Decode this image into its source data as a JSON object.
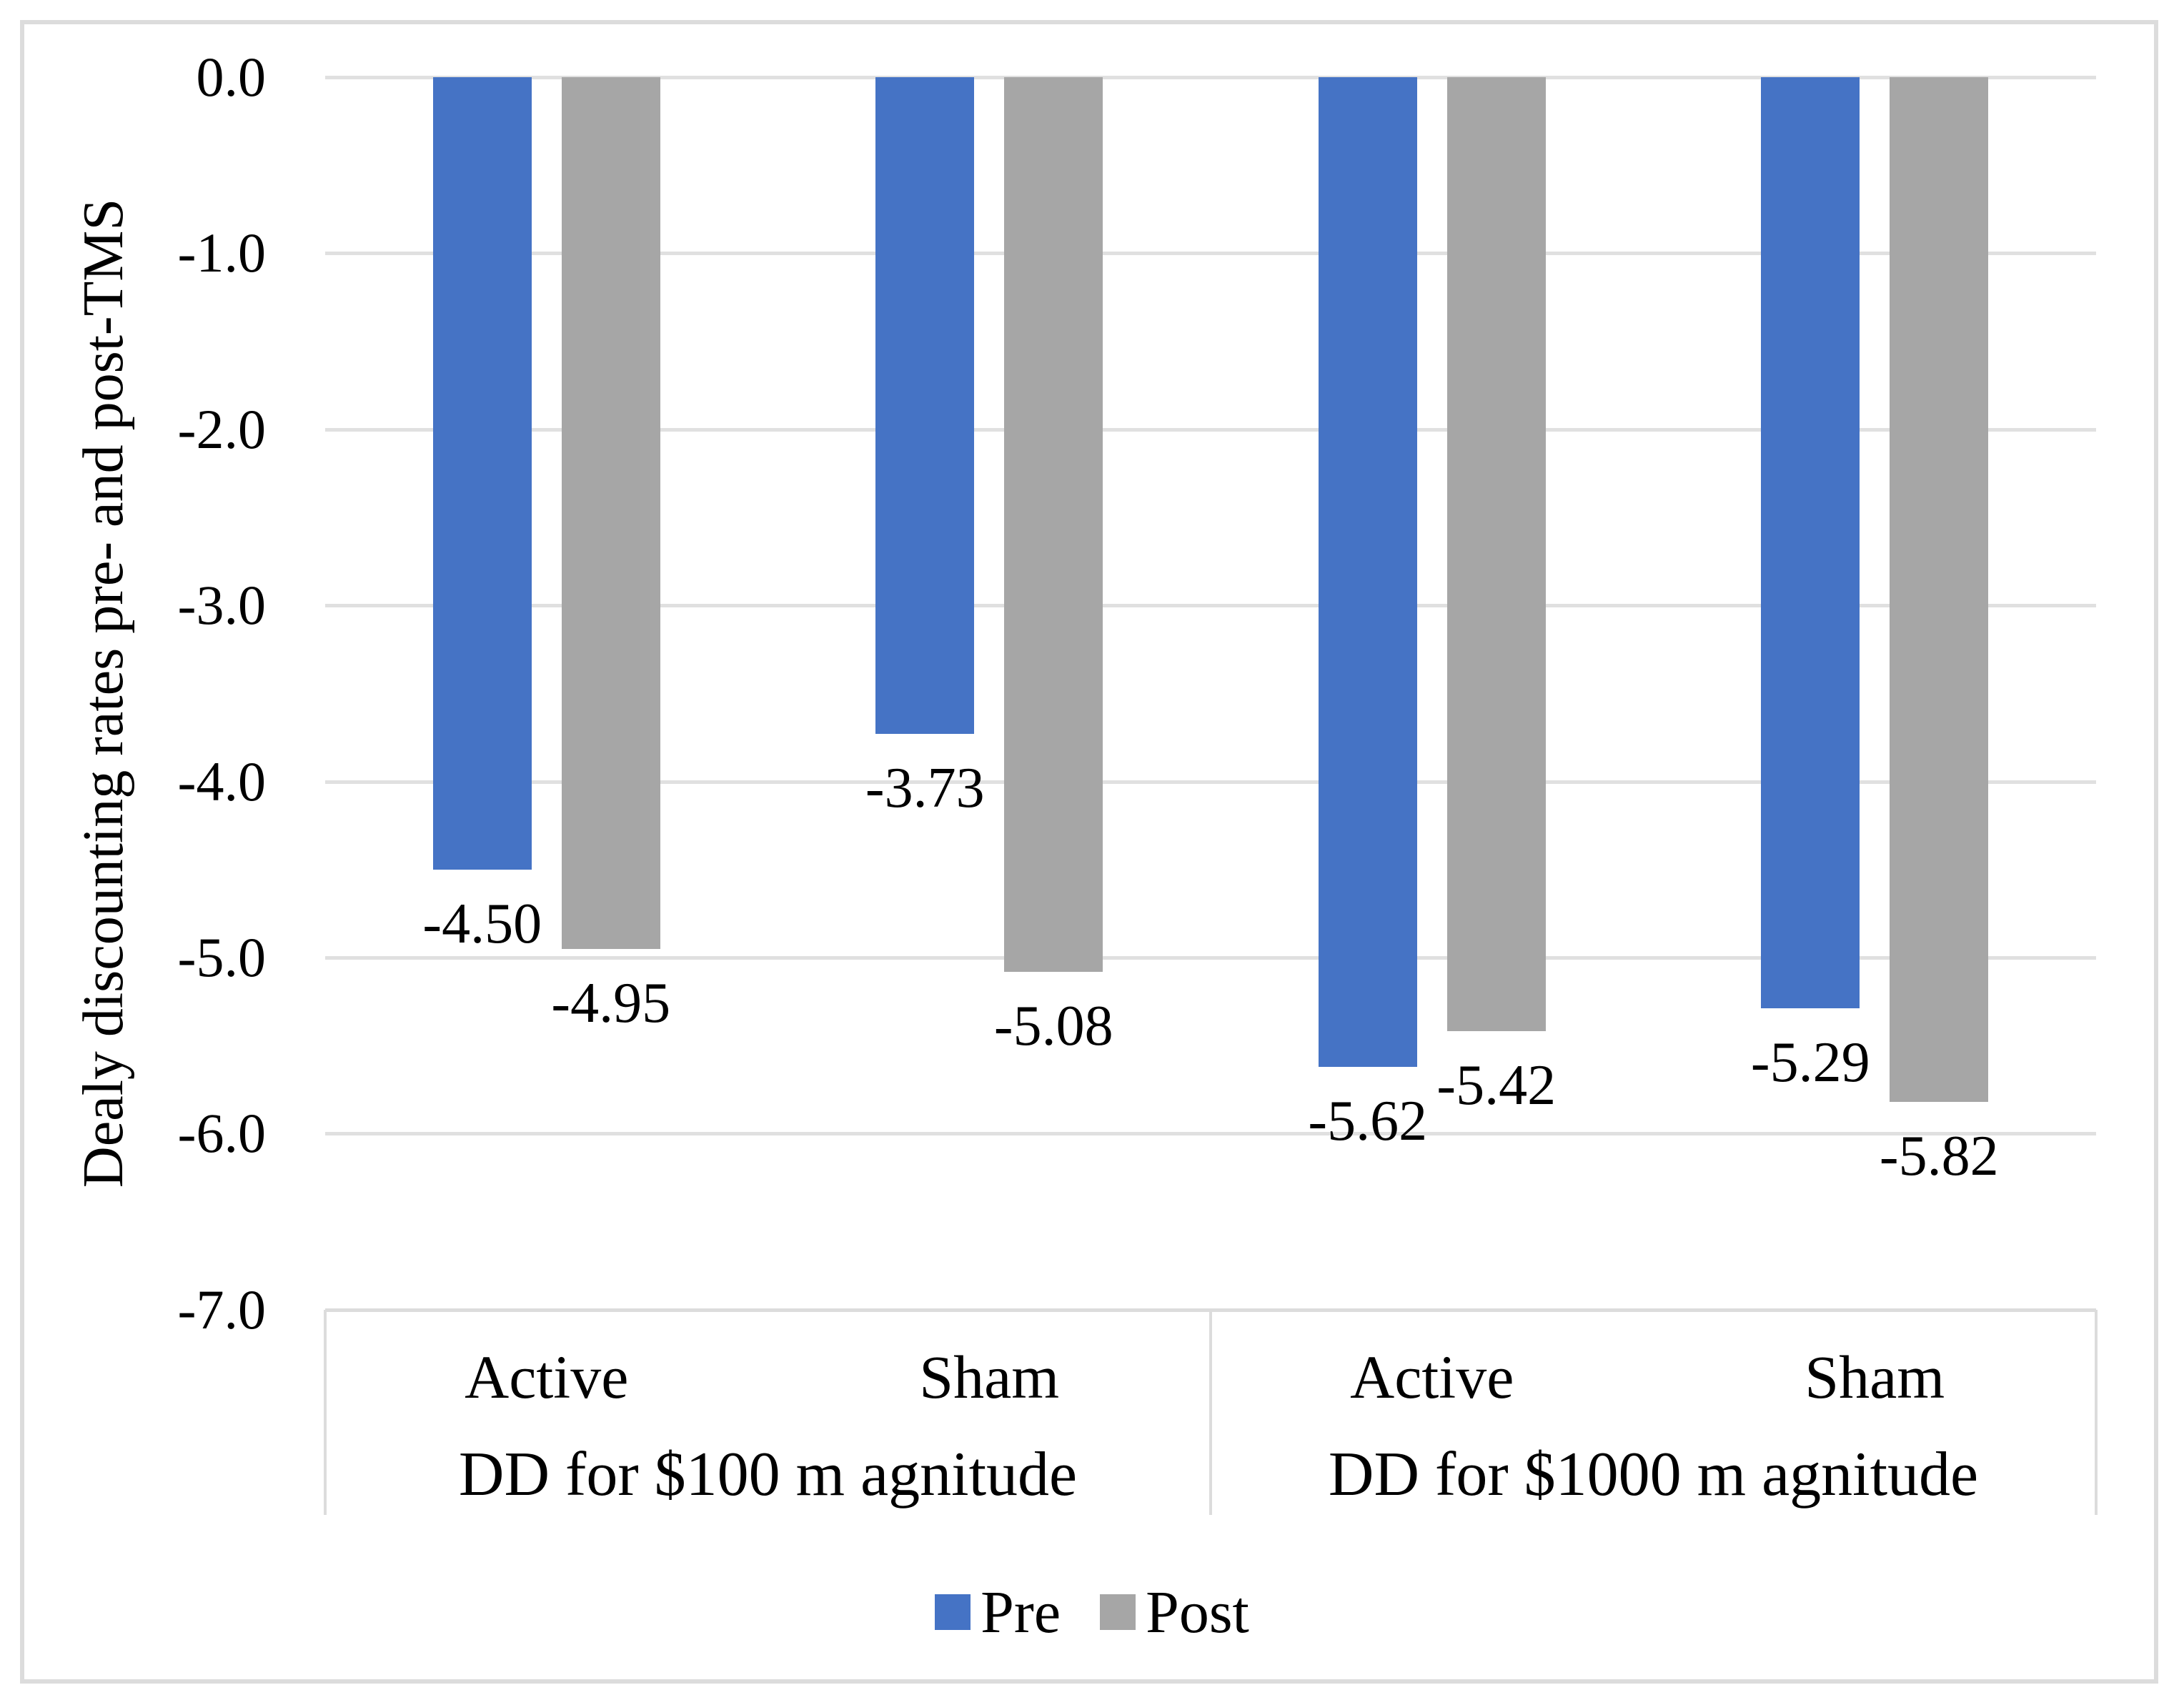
{
  "chart_data": {
    "type": "bar",
    "orientation": "vertical-negative",
    "y_axis": {
      "title": "Dealy  discounting rates pre-  and post-TMS",
      "max": 0.0,
      "min": -7.0,
      "step": 1.0,
      "tick_labels": [
        "0.0",
        "-1.0",
        "-2.0",
        "-3.0",
        "-4.0",
        "-5.0",
        "-6.0",
        "-7.0"
      ],
      "grid": true
    },
    "x_axis": {
      "groups": [
        {
          "label": "DD for $100 m agnitude",
          "categories": [
            "Active",
            "Sham"
          ]
        },
        {
          "label": "DD for $1000 m agnitude",
          "categories": [
            "Active",
            "Sham"
          ]
        }
      ]
    },
    "series": [
      {
        "name": "Pre",
        "color": "#4573C5",
        "values": [
          -4.5,
          -3.73,
          -5.62,
          -5.29
        ],
        "value_labels": [
          "-4.50",
          "-3.73",
          "-5.62",
          "-5.29"
        ]
      },
      {
        "name": "Post",
        "color": "#A6A6A6",
        "values": [
          -4.95,
          -5.08,
          -5.42,
          -5.82
        ],
        "value_labels": [
          "-4.95",
          "-5.08",
          "-5.42",
          "-5.82"
        ]
      }
    ],
    "legend_position": "bottom"
  },
  "style": {
    "bar_blue": "#4573C5",
    "bar_gray": "#A6A6A6",
    "grid_color": "#e0e0e0",
    "axis_color": "#dcdcdc",
    "frame_border_color": "#dcdcdc",
    "text_color": "#000000"
  }
}
